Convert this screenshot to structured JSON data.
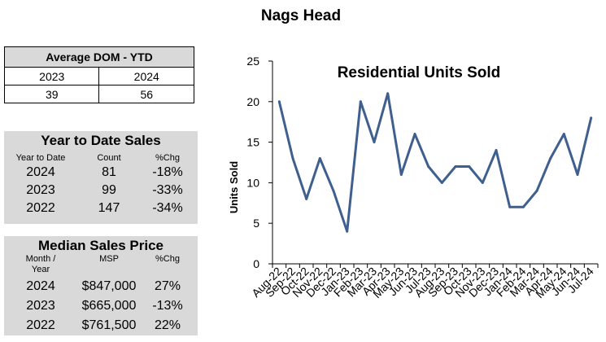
{
  "page_title": "Nags Head",
  "dom": {
    "title": "Average DOM - YTD",
    "years": [
      "2023",
      "2024"
    ],
    "values": [
      "39",
      "56"
    ]
  },
  "ytd": {
    "title": "Year to Date Sales",
    "headers": [
      "Year to Date",
      "Count",
      "%Chg"
    ],
    "rows": [
      {
        "year": "2024",
        "count": "81",
        "chg": "-18%"
      },
      {
        "year": "2023",
        "count": "99",
        "chg": "-33%"
      },
      {
        "year": "2022",
        "count": "147",
        "chg": "-34%"
      }
    ]
  },
  "msp": {
    "title": "Median Sales Price",
    "headers": [
      "Month /\nYear",
      "MSP",
      "%Chg"
    ],
    "rows": [
      {
        "year": "2024",
        "price": "$847,000",
        "chg": "27%"
      },
      {
        "year": "2023",
        "price": "$665,000",
        "chg": "-13%"
      },
      {
        "year": "2022",
        "price": "$761,500",
        "chg": "22%"
      }
    ]
  },
  "chart_data": {
    "type": "line",
    "title": "Residential Units Sold",
    "ylabel": "Units Sold",
    "xlabel": "",
    "ylim": [
      0,
      25
    ],
    "yticks": [
      0,
      5,
      10,
      15,
      20,
      25
    ],
    "grid": false,
    "line_color": "#3f5f8f",
    "categories": [
      "Aug-22",
      "Sep-22",
      "Oct-22",
      "Nov-22",
      "Dec-22",
      "Jan-23",
      "Feb-23",
      "Mar-23",
      "Apr-23",
      "May-23",
      "Jun-23",
      "Jul-23",
      "Aug-23",
      "Sep-23",
      "Oct-23",
      "Nov-23",
      "Dec-23",
      "Jan-24",
      "Feb-24",
      "Mar-24",
      "Apr-24",
      "May-24",
      "Jun-24",
      "Jul-24"
    ],
    "values": [
      20,
      13,
      8,
      13,
      9,
      4,
      20,
      15,
      21,
      11,
      16,
      12,
      10,
      12,
      12,
      10,
      14,
      7,
      7,
      9,
      13,
      16,
      11,
      18
    ]
  }
}
